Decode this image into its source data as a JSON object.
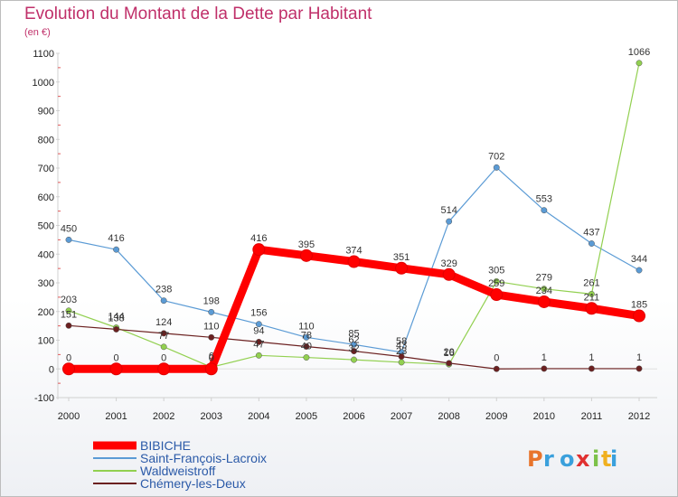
{
  "title": "Evolution du Montant de la Dette par Habitant",
  "unit": "(en €)",
  "logo_text": "Proxiti",
  "chart_data": {
    "type": "line",
    "x": [
      2000,
      2001,
      2002,
      2003,
      2004,
      2005,
      2006,
      2007,
      2008,
      2009,
      2010,
      2011,
      2012
    ],
    "ylim": [
      -100,
      1100
    ],
    "yticks": [
      -100,
      0,
      100,
      200,
      300,
      400,
      500,
      600,
      700,
      800,
      900,
      1000,
      1100
    ],
    "grid": false,
    "legend": "bottom-left",
    "series": [
      {
        "name": "BIBICHE",
        "color": "#ff0000",
        "values": [
          0,
          0,
          0,
          0,
          416,
          395,
          374,
          351,
          329,
          259,
          234,
          211,
          185
        ],
        "labels": [
          "0",
          "0",
          "0",
          "0",
          "416",
          "395",
          "374",
          "351",
          "329",
          "259",
          "234",
          "211",
          "185"
        ]
      },
      {
        "name": "Saint-François-Lacroix",
        "color": "#5b9bd5",
        "values": [
          450,
          416,
          238,
          198,
          156,
          110,
          85,
          58,
          514,
          702,
          553,
          437,
          344
        ],
        "labels": [
          "450",
          "416",
          "238",
          "198",
          "156",
          "110",
          "85",
          "58",
          "514",
          "702",
          "553",
          "437",
          "344"
        ]
      },
      {
        "name": "Waldweistroff",
        "color": "#92d050",
        "values": [
          203,
          144,
          77,
          6,
          47,
          40,
          32,
          23,
          16,
          305,
          279,
          261,
          1066
        ],
        "labels": [
          "203",
          "144",
          "77",
          "6",
          "47",
          "40",
          "32",
          "23",
          "16",
          "305",
          "279",
          "261",
          "1066"
        ]
      },
      {
        "name": "Chémery-les-Deux",
        "color": "#6b2020",
        "values": [
          151,
          138,
          124,
          110,
          94,
          78,
          62,
          43,
          20,
          0,
          1,
          1,
          1
        ],
        "labels": [
          "151",
          "138",
          "124",
          "110",
          "94",
          "78",
          "62",
          "43",
          "20",
          "0",
          "1",
          "1",
          "1"
        ]
      }
    ]
  }
}
